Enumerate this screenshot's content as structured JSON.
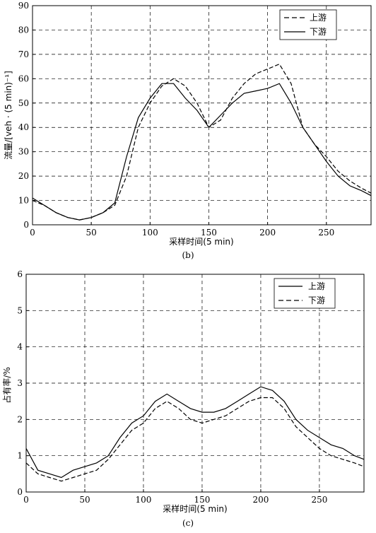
{
  "chart_data": [
    {
      "type": "line",
      "panel": "(b)",
      "xlabel": "采样时间(5 min)",
      "ylabel": "流量/[veh · (5 min)⁻¹]",
      "xlim": [
        0,
        288
      ],
      "ylim": [
        0,
        90
      ],
      "xticks": [
        0,
        50,
        100,
        150,
        200,
        250
      ],
      "yticks": [
        0,
        10,
        20,
        30,
        40,
        50,
        60,
        70,
        80,
        90
      ],
      "grid": true,
      "legend_position": "top-right",
      "series": [
        {
          "name": "上游",
          "style": "dashed",
          "x": [
            0,
            10,
            20,
            30,
            40,
            50,
            60,
            70,
            80,
            90,
            100,
            110,
            120,
            130,
            140,
            150,
            160,
            170,
            180,
            190,
            200,
            210,
            220,
            230,
            240,
            250,
            260,
            270,
            280,
            288
          ],
          "values": [
            10,
            8,
            5,
            3,
            2,
            3,
            5,
            8,
            20,
            40,
            50,
            57,
            60,
            57,
            50,
            40,
            43,
            52,
            58,
            62,
            64,
            66,
            58,
            40,
            33,
            28,
            22,
            18,
            15,
            13
          ]
        },
        {
          "name": "下游",
          "style": "solid",
          "x": [
            0,
            10,
            20,
            30,
            40,
            50,
            60,
            70,
            80,
            90,
            100,
            110,
            120,
            130,
            140,
            150,
            160,
            170,
            180,
            190,
            200,
            210,
            220,
            230,
            240,
            250,
            260,
            270,
            280,
            288
          ],
          "values": [
            11,
            8,
            5,
            3,
            2,
            3,
            5,
            9,
            28,
            44,
            52,
            58,
            58,
            52,
            47,
            40,
            45,
            50,
            54,
            55,
            56,
            58,
            50,
            40,
            33,
            26,
            20,
            16,
            14,
            12
          ]
        }
      ]
    },
    {
      "type": "line",
      "panel": "(c)",
      "xlabel": "采样时间(5 min)",
      "ylabel": "占有率/%",
      "xlim": [
        0,
        288
      ],
      "ylim": [
        0,
        6
      ],
      "xticks": [
        0,
        50,
        100,
        150,
        200,
        250
      ],
      "yticks": [
        0,
        1,
        2,
        3,
        4,
        5,
        6
      ],
      "grid": true,
      "legend_position": "top-right",
      "series": [
        {
          "name": "上游",
          "style": "solid",
          "x": [
            0,
            10,
            20,
            30,
            40,
            50,
            60,
            70,
            80,
            90,
            100,
            110,
            120,
            130,
            140,
            150,
            160,
            170,
            180,
            190,
            200,
            210,
            220,
            230,
            240,
            250,
            260,
            270,
            280,
            288
          ],
          "values": [
            1.2,
            0.6,
            0.5,
            0.4,
            0.6,
            0.7,
            0.8,
            1.0,
            1.5,
            1.9,
            2.1,
            2.5,
            2.7,
            2.5,
            2.3,
            2.2,
            2.2,
            2.3,
            2.5,
            2.7,
            2.9,
            2.8,
            2.5,
            2.0,
            1.7,
            1.5,
            1.3,
            1.2,
            1.0,
            0.9
          ]
        },
        {
          "name": "下游",
          "style": "dashed",
          "x": [
            0,
            10,
            20,
            30,
            40,
            50,
            60,
            70,
            80,
            90,
            100,
            110,
            120,
            130,
            140,
            150,
            160,
            170,
            180,
            190,
            200,
            210,
            220,
            230,
            240,
            250,
            260,
            270,
            280,
            288
          ],
          "values": [
            0.8,
            0.5,
            0.4,
            0.3,
            0.4,
            0.5,
            0.6,
            0.9,
            1.3,
            1.7,
            1.9,
            2.3,
            2.5,
            2.3,
            2.0,
            1.9,
            2.0,
            2.1,
            2.3,
            2.5,
            2.6,
            2.6,
            2.3,
            1.8,
            1.5,
            1.2,
            1.0,
            0.9,
            0.8,
            0.7
          ]
        }
      ]
    }
  ]
}
